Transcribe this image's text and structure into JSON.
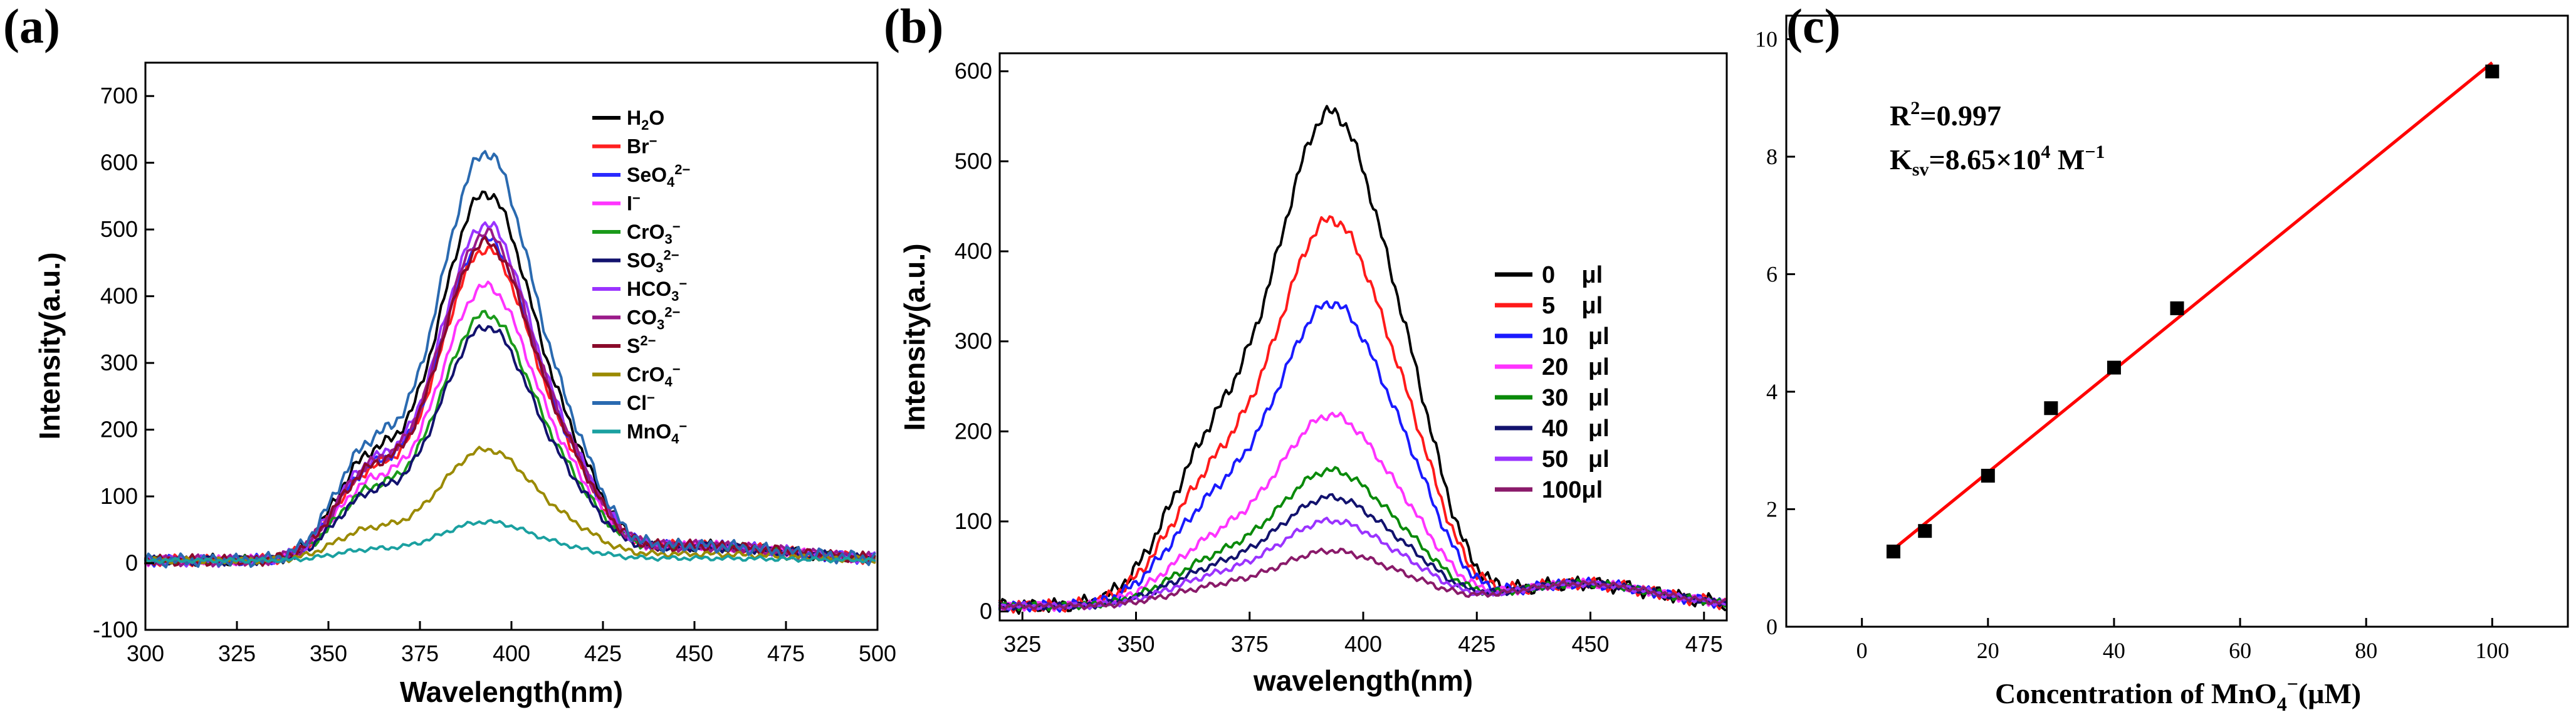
{
  "chart_data": [
    {
      "panel": "(a)",
      "type": "line",
      "xlabel": "Wavelength(nm)",
      "ylabel": "Intensity(a.u.)",
      "xlim": [
        300,
        500
      ],
      "ylim": [
        -100,
        750
      ],
      "xticks": [
        300,
        325,
        350,
        375,
        400,
        425,
        450,
        475,
        500
      ],
      "yticks": [
        -100,
        0,
        100,
        200,
        300,
        400,
        500,
        600,
        700
      ],
      "legend_position": "top-right",
      "series": [
        {
          "name": "H₂O",
          "label_main": "H",
          "label_sub": "2",
          "label_end": "O",
          "label_sup": "",
          "color": "#000000",
          "peak": 590
        },
        {
          "name": "Br⁻",
          "label_main": "Br",
          "label_sub": "",
          "label_end": "",
          "label_sup": "−",
          "color": "#ff2020",
          "peak": 500
        },
        {
          "name": "SeO₄²⁻",
          "label_main": "SeO",
          "label_sub": "4",
          "label_end": "",
          "label_sup": "2−",
          "color": "#2a2aff",
          "peak": 515
        },
        {
          "name": "I⁻",
          "label_main": "I",
          "label_sub": "",
          "label_end": "",
          "label_sup": "−",
          "color": "#ff33ff",
          "peak": 440
        },
        {
          "name": "CrO₃⁻",
          "label_main": "CrO",
          "label_sub": "3",
          "label_end": "",
          "label_sup": "−",
          "color": "#1a9a1a",
          "peak": 395
        },
        {
          "name": "SO₃²⁻",
          "label_main": "SO",
          "label_sub": "3",
          "label_end": "",
          "label_sup": "2−",
          "color": "#12126e",
          "peak": 375
        },
        {
          "name": "HCO₃⁻",
          "label_main": "HCO",
          "label_sub": "3",
          "label_end": "",
          "label_sup": "−",
          "color": "#9a33ff",
          "peak": 540
        },
        {
          "name": "CO₃²⁻",
          "label_main": "CO",
          "label_sub": "3",
          "label_end": "",
          "label_sup": "2−",
          "color": "#9a1a8a",
          "peak": 525
        },
        {
          "name": "S²⁻",
          "label_main": "S",
          "label_sub": "",
          "label_end": "",
          "label_sup": "2−",
          "color": "#8a0a2a",
          "peak": 510
        },
        {
          "name": "CrO₄⁻",
          "label_main": "CrO",
          "label_sub": "4",
          "label_end": "",
          "label_sup": "−",
          "color": "#9a8a00",
          "peak": 178
        },
        {
          "name": "Cl⁻",
          "label_main": "Cl",
          "label_sub": "",
          "label_end": "",
          "label_sup": "−",
          "color": "#2a6ab0",
          "peak": 655
        },
        {
          "name": "MnO₄⁻",
          "label_main": "MnO",
          "label_sub": "4",
          "label_end": "",
          "label_sup": "−",
          "color": "#1aa0a0",
          "peak": 62
        }
      ]
    },
    {
      "panel": "(b)",
      "type": "line",
      "xlabel": "wavelength(nm)",
      "ylabel": "Intensity(a.u.)",
      "xlim": [
        320,
        480
      ],
      "ylim": [
        -10,
        620
      ],
      "xticks": [
        325,
        350,
        375,
        400,
        425,
        450,
        475
      ],
      "yticks": [
        0,
        100,
        200,
        300,
        400,
        500,
        600
      ],
      "legend_position": "center-right",
      "series": [
        {
          "name": "0    μl",
          "color": "#000000",
          "peak": 590
        },
        {
          "name": "5    μl",
          "color": "#ff1a1a",
          "peak": 462
        },
        {
          "name": "10   μl",
          "color": "#1a1aff",
          "peak": 362
        },
        {
          "name": "20   μl",
          "color": "#ff33ff",
          "peak": 228
        },
        {
          "name": "30   μl",
          "color": "#0a8a0a",
          "peak": 162
        },
        {
          "name": "40   μl",
          "color": "#12126e",
          "peak": 130
        },
        {
          "name": "50   μl",
          "color": "#9a33ff",
          "peak": 102
        },
        {
          "name": "100μl",
          "color": "#8a1a6a",
          "peak": 66
        }
      ]
    },
    {
      "panel": "(c)",
      "type": "scatter",
      "xlabel_main": "Concentration of MnO",
      "xlabel_sub": "4",
      "xlabel_sup": "−",
      "xlabel_end": "(μM)",
      "ylabel": "",
      "xlim": [
        -12,
        112
      ],
      "ylim": [
        0,
        10.4
      ],
      "xticks": [
        0,
        20,
        40,
        60,
        80,
        100
      ],
      "yticks": [
        0,
        2,
        4,
        6,
        8,
        10
      ],
      "points": [
        {
          "x": 5,
          "y": 1.28
        },
        {
          "x": 10,
          "y": 1.63
        },
        {
          "x": 20,
          "y": 2.57
        },
        {
          "x": 30,
          "y": 3.72
        },
        {
          "x": 40,
          "y": 4.41
        },
        {
          "x": 50,
          "y": 5.42
        },
        {
          "x": 100,
          "y": 9.45
        }
      ],
      "fit": {
        "x": [
          5,
          100
        ],
        "y": [
          1.32,
          9.6
        ],
        "color": "#ff0000"
      },
      "annotations": {
        "r2_main": "R",
        "r2_sup": "2",
        "r2_end": "=0.997",
        "ksv_main": "K",
        "ksv_sub": "sv",
        "ksv_mid": "=8.65×10",
        "ksv_sup": "4",
        "ksv_end": " M",
        "ksv_sup2": "−1"
      }
    }
  ]
}
